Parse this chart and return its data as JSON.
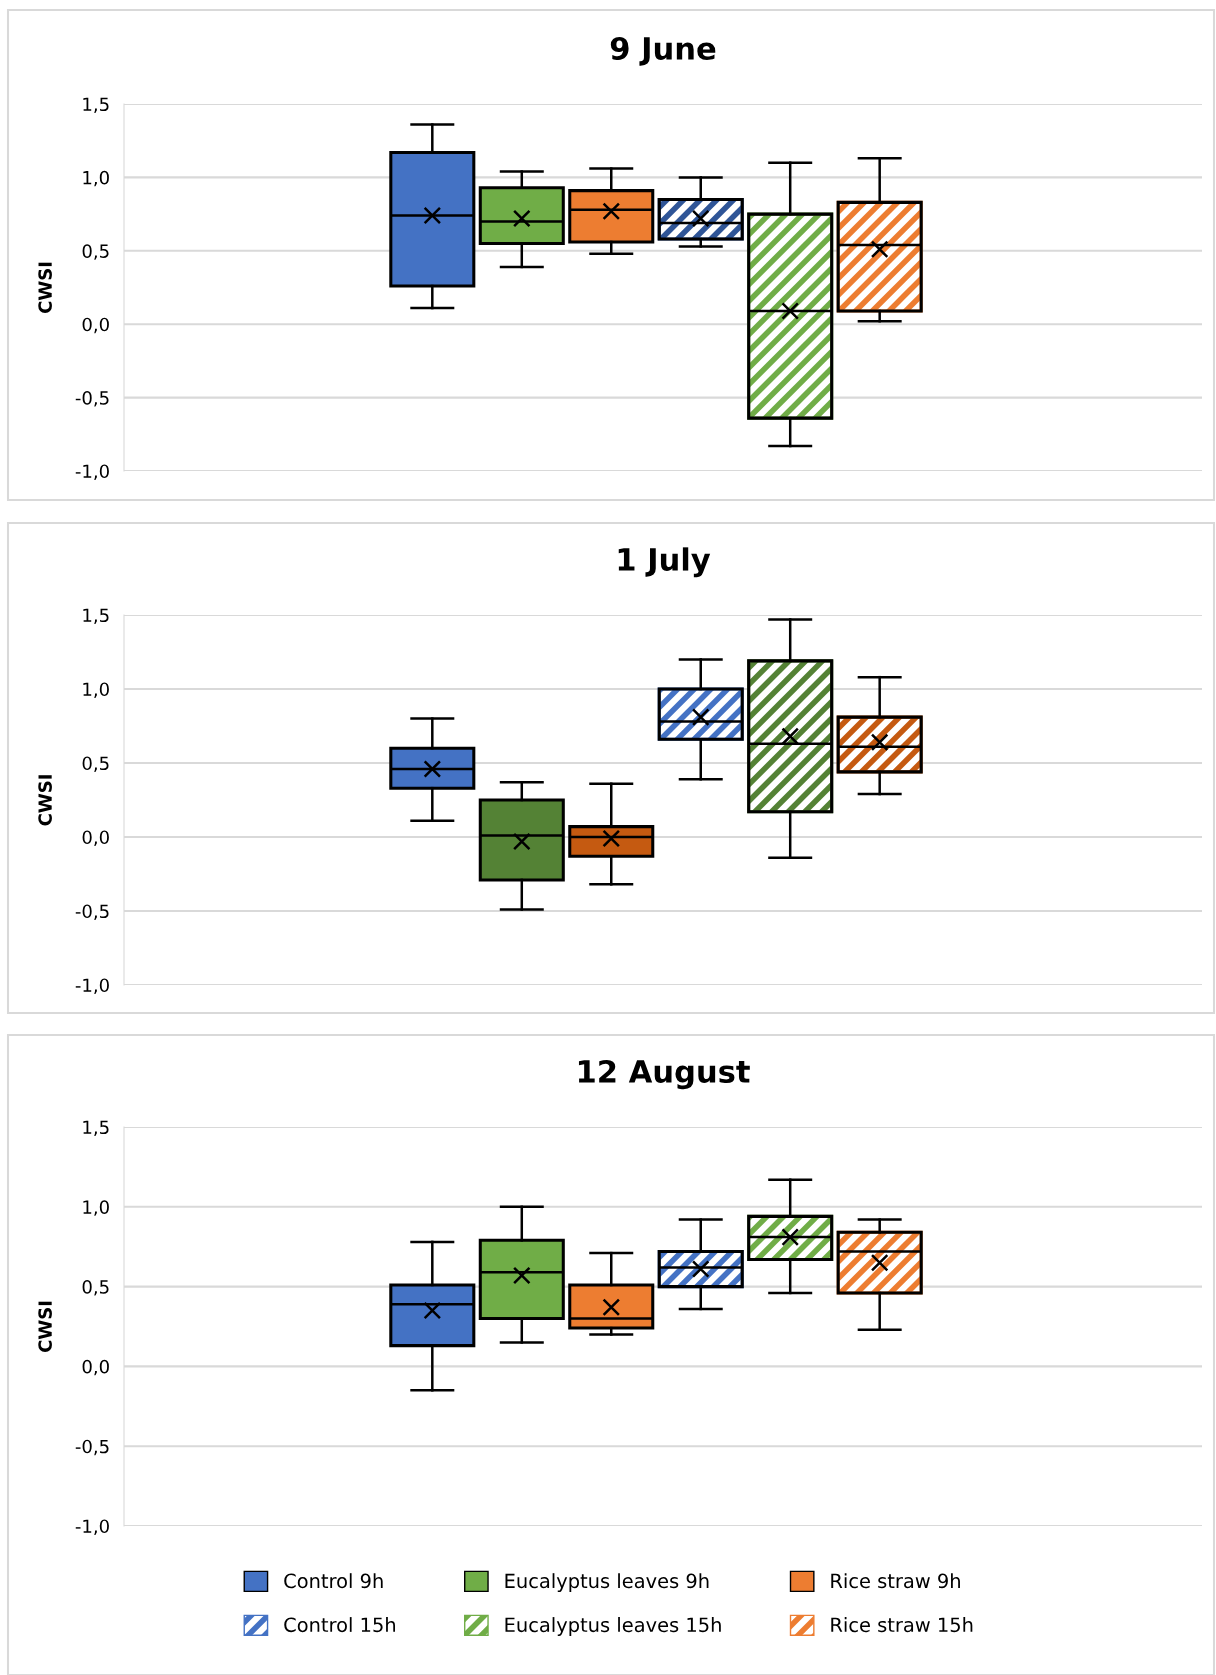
{
  "chart_data": [
    {
      "type": "box",
      "title": "9 June",
      "ylabel": "CWSI",
      "categories": [
        null
      ],
      "ylim": [
        -1.0,
        1.5
      ],
      "yticks": [
        {
          "value": -1.0,
          "label": "-1,0"
        },
        {
          "value": -0.5,
          "label": "-0,5"
        },
        {
          "value": 0.0,
          "label": "0,0"
        },
        {
          "value": 0.5,
          "label": "0,5"
        },
        {
          "value": 1.0,
          "label": "1,0"
        },
        {
          "value": 1.5,
          "label": "1,5"
        }
      ],
      "grid": "y",
      "legend": false,
      "series": [
        {
          "color": "#4472c4",
          "boxes": [
            {
              "low": 0.11,
              "q1": 0.26,
              "median": 0.74,
              "q3": 1.17,
              "high": 1.36,
              "mean": 0.74
            }
          ]
        },
        {
          "color": "#70ad47",
          "boxes": [
            {
              "low": 0.39,
              "q1": 0.55,
              "median": 0.7,
              "q3": 0.93,
              "high": 1.04,
              "mean": 0.72
            }
          ]
        },
        {
          "color": "#ed7d31",
          "boxes": [
            {
              "low": 0.48,
              "q1": 0.56,
              "median": 0.78,
              "q3": 0.91,
              "high": 1.06,
              "mean": 0.77
            }
          ]
        },
        {
          "color": "#2f5597",
          "boxes": [
            {
              "low": 0.53,
              "q1": 0.58,
              "median": 0.69,
              "q3": 0.85,
              "high": 1.0,
              "mean": 0.72
            }
          ]
        },
        {
          "color": "#70ad47",
          "boxes": [
            {
              "low": -0.83,
              "q1": -0.64,
              "median": 0.09,
              "q3": 0.75,
              "high": 1.1,
              "mean": 0.09
            }
          ]
        },
        {
          "color": "#ed7d31",
          "boxes": [
            {
              "low": 0.02,
              "q1": 0.09,
              "median": 0.54,
              "q3": 0.83,
              "high": 1.13,
              "mean": 0.51
            }
          ]
        }
      ]
    },
    {
      "type": "box",
      "title": "1 July",
      "ylabel": "CWSI",
      "categories": [
        null
      ],
      "ylim": [
        -1.0,
        1.5
      ],
      "yticks": [
        {
          "value": -1.0,
          "label": "-1,0"
        },
        {
          "value": -0.5,
          "label": "-0,5"
        },
        {
          "value": 0.0,
          "label": "0,0"
        },
        {
          "value": 0.5,
          "label": "0,5"
        },
        {
          "value": 1.0,
          "label": "1,0"
        },
        {
          "value": 1.5,
          "label": "1,5"
        }
      ],
      "grid": "y",
      "legend": false,
      "series": [
        {
          "color": "#4472c4",
          "boxes": [
            {
              "low": 0.11,
              "q1": 0.33,
              "median": 0.46,
              "q3": 0.6,
              "high": 0.8,
              "mean": 0.46
            }
          ]
        },
        {
          "color": "#548235",
          "boxes": [
            {
              "low": -0.49,
              "q1": -0.29,
              "median": 0.01,
              "q3": 0.25,
              "high": 0.37,
              "mean": -0.03
            }
          ]
        },
        {
          "color": "#c55a11",
          "boxes": [
            {
              "low": -0.32,
              "q1": -0.13,
              "median": 0.0,
              "q3": 0.07,
              "high": 0.36,
              "mean": -0.01
            }
          ]
        },
        {
          "color": "#4472c4",
          "boxes": [
            {
              "low": 0.39,
              "q1": 0.66,
              "median": 0.78,
              "q3": 1.0,
              "high": 1.2,
              "mean": 0.81
            }
          ]
        },
        {
          "color": "#548235",
          "boxes": [
            {
              "low": -0.14,
              "q1": 0.17,
              "median": 0.63,
              "q3": 1.19,
              "high": 1.47,
              "mean": 0.68
            }
          ]
        },
        {
          "color": "#c55a11",
          "boxes": [
            {
              "low": 0.29,
              "q1": 0.44,
              "median": 0.61,
              "q3": 0.81,
              "high": 1.08,
              "mean": 0.64
            }
          ]
        }
      ]
    },
    {
      "type": "box",
      "title": "12 August",
      "ylabel": "CWSI",
      "categories": [
        null
      ],
      "ylim": [
        -1.0,
        1.5
      ],
      "yticks": [
        {
          "value": -1.0,
          "label": "-1,0"
        },
        {
          "value": -0.5,
          "label": "-0,5"
        },
        {
          "value": 0.0,
          "label": "0,0"
        },
        {
          "value": 0.5,
          "label": "0,5"
        },
        {
          "value": 1.0,
          "label": "1,0"
        },
        {
          "value": 1.5,
          "label": "1,5"
        }
      ],
      "grid": "y",
      "legend": "bottom",
      "series": [
        {
          "name": "Control 9h",
          "color": "#4472c4",
          "boxes": [
            {
              "low": -0.15,
              "q1": 0.13,
              "median": 0.39,
              "q3": 0.51,
              "high": 0.78,
              "mean": 0.35
            }
          ]
        },
        {
          "name": "Eucalyptus leaves 9h",
          "color": "#70ad47",
          "boxes": [
            {
              "low": 0.15,
              "q1": 0.3,
              "median": 0.59,
              "q3": 0.79,
              "high": 1.0,
              "mean": 0.57
            }
          ]
        },
        {
          "name": "Rice straw 9h",
          "color": "#ed7d31",
          "boxes": [
            {
              "low": 0.2,
              "q1": 0.24,
              "median": 0.3,
              "q3": 0.51,
              "high": 0.71,
              "mean": 0.37
            }
          ]
        },
        {
          "name": "Control 15h",
          "color": "#4472c4",
          "boxes": [
            {
              "low": 0.36,
              "q1": 0.5,
              "median": 0.62,
              "q3": 0.72,
              "high": 0.92,
              "mean": 0.61
            }
          ]
        },
        {
          "name": "Eucalyptus leaves 15h",
          "color": "#70ad47",
          "boxes": [
            {
              "low": 0.46,
              "q1": 0.67,
              "median": 0.81,
              "q3": 0.94,
              "high": 1.17,
              "mean": 0.81
            }
          ]
        },
        {
          "name": "Rice straw 15h",
          "color": "#ed7d31",
          "boxes": [
            {
              "low": 0.23,
              "q1": 0.46,
              "median": 0.72,
              "q3": 0.84,
              "high": 0.92,
              "mean": 0.65
            }
          ]
        }
      ]
    }
  ]
}
